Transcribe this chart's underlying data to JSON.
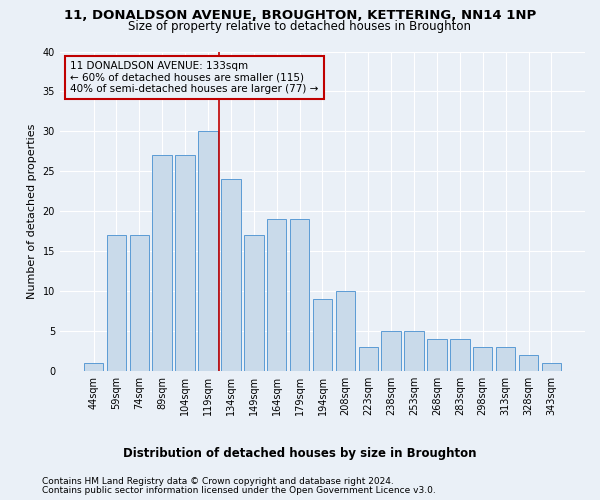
{
  "title1": "11, DONALDSON AVENUE, BROUGHTON, KETTERING, NN14 1NP",
  "title2": "Size of property relative to detached houses in Broughton",
  "xlabel": "Distribution of detached houses by size in Broughton",
  "ylabel": "Number of detached properties",
  "categories": [
    "44sqm",
    "59sqm",
    "74sqm",
    "89sqm",
    "104sqm",
    "119sqm",
    "134sqm",
    "149sqm",
    "164sqm",
    "179sqm",
    "194sqm",
    "208sqm",
    "223sqm",
    "238sqm",
    "253sqm",
    "268sqm",
    "283sqm",
    "298sqm",
    "313sqm",
    "328sqm",
    "343sqm"
  ],
  "values": [
    1,
    17,
    17,
    27,
    27,
    30,
    24,
    17,
    19,
    19,
    9,
    10,
    3,
    5,
    5,
    4,
    4,
    3,
    3,
    2,
    1
  ],
  "bar_color": "#c9daea",
  "bar_edge_color": "#5b9bd5",
  "vline_x_idx": 5.5,
  "vline_color": "#c00000",
  "annotation_text": "11 DONALDSON AVENUE: 133sqm\n← 60% of detached houses are smaller (115)\n40% of semi-detached houses are larger (77) →",
  "annotation_box_color": "#c00000",
  "bg_color": "#eaf0f7",
  "grid_color": "#ffffff",
  "ylim": [
    0,
    40
  ],
  "yticks": [
    0,
    5,
    10,
    15,
    20,
    25,
    30,
    35,
    40
  ],
  "footer1": "Contains HM Land Registry data © Crown copyright and database right 2024.",
  "footer2": "Contains public sector information licensed under the Open Government Licence v3.0.",
  "title1_fontsize": 9.5,
  "title2_fontsize": 8.5,
  "xlabel_fontsize": 8.5,
  "ylabel_fontsize": 8,
  "tick_fontsize": 7,
  "footer_fontsize": 6.5,
  "annotation_fontsize": 7.5
}
